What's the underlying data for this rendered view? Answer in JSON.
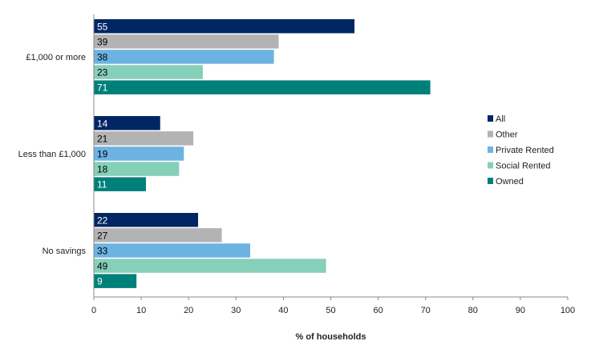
{
  "chart_data": {
    "type": "bar",
    "orientation": "horizontal",
    "categories": [
      "£1,000 or more",
      "Less than £1,000",
      "No savings"
    ],
    "series": [
      {
        "name": "All",
        "color": "#002663",
        "label_color": "#ffffff",
        "values": [
          55,
          14,
          22
        ]
      },
      {
        "name": "Other",
        "color": "#b3b3b3",
        "label_color": "#000000",
        "values": [
          39,
          21,
          27
        ]
      },
      {
        "name": "Private Rented",
        "color": "#6cb3e3",
        "label_color": "#000000",
        "values": [
          38,
          19,
          33
        ]
      },
      {
        "name": "Social Rented",
        "color": "#86cfb9",
        "label_color": "#000000",
        "values": [
          23,
          18,
          49
        ]
      },
      {
        "name": "Owned",
        "color": "#00807a",
        "label_color": "#ffffff",
        "values": [
          71,
          11,
          9
        ]
      }
    ],
    "xlabel": "% of households",
    "ylabel": "",
    "title": "",
    "xlim": [
      0,
      100
    ],
    "xticks": [
      0,
      10,
      20,
      30,
      40,
      50,
      60,
      70,
      80,
      90,
      100
    ],
    "grid": false,
    "legend_position": "right"
  }
}
